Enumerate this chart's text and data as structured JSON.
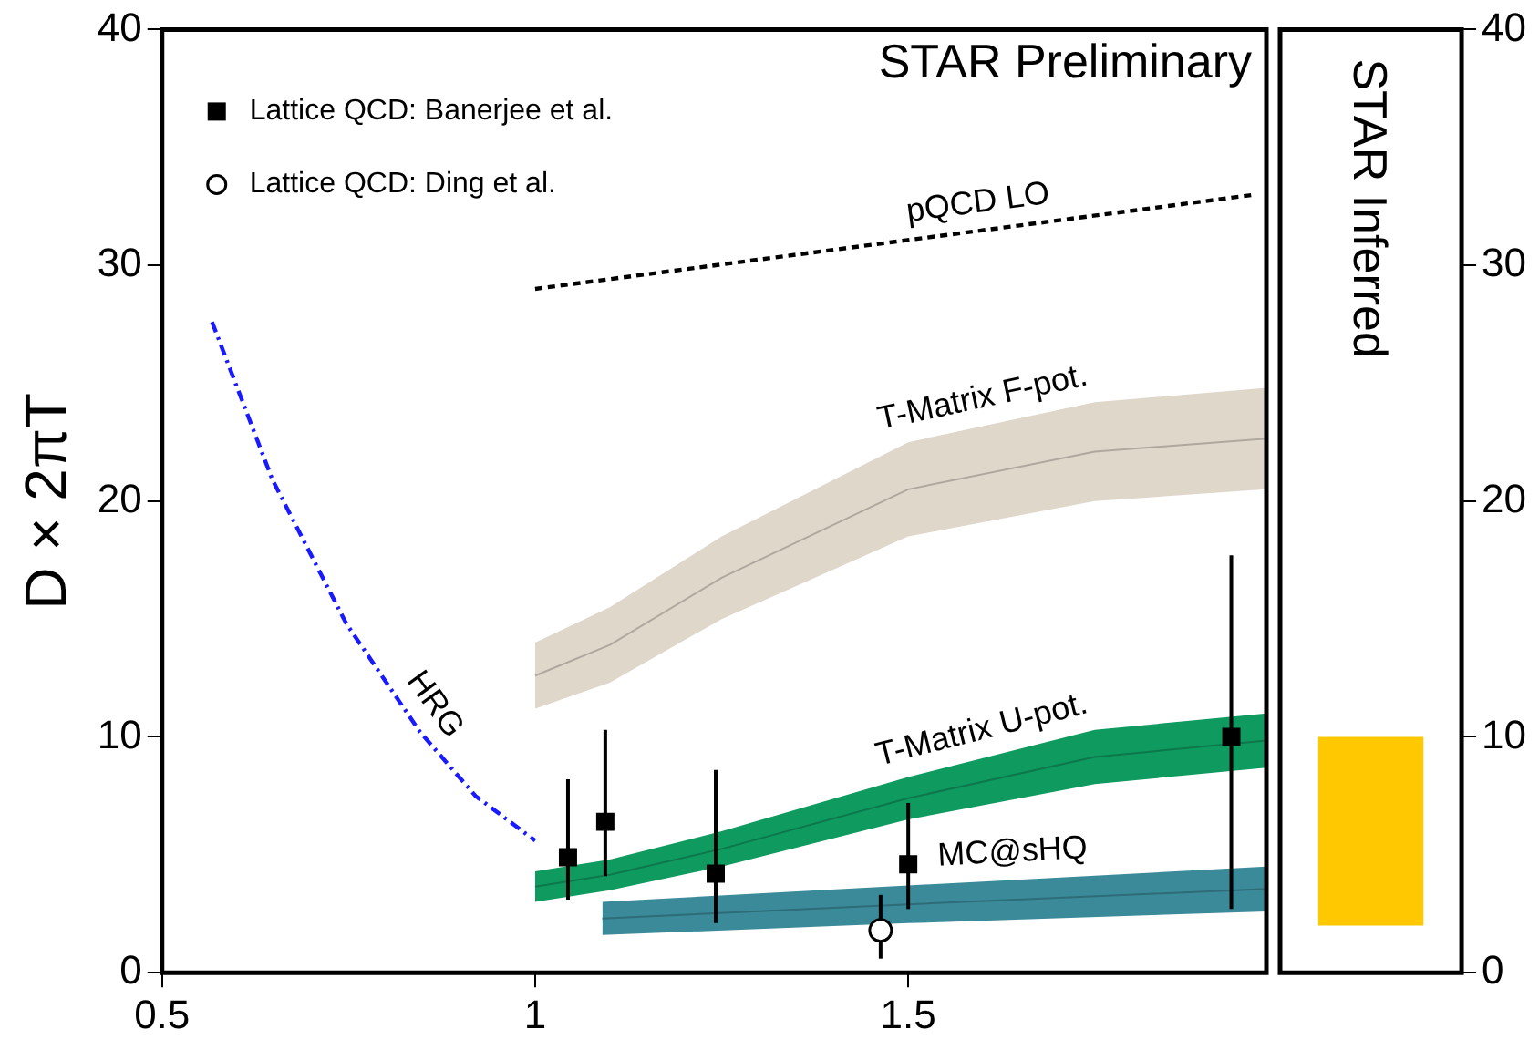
{
  "chart_data": [
    {
      "type": "line",
      "ylabel": "D × 2πT",
      "xlim": [
        0.5,
        1.98
      ],
      "xticks": [
        0.5,
        1,
        1.5
      ],
      "ylim": [
        0,
        40
      ],
      "yticks": [
        0,
        10,
        20,
        30,
        40
      ],
      "grid": false,
      "legend": "top left",
      "annotations": [
        "STAR Preliminary"
      ],
      "tick_labels": "xy",
      "series": [
        {
          "name": "pQCD LO",
          "type": "line",
          "line_style": "dashed",
          "color": "#000000",
          "x": [
            1,
            1.965
          ],
          "values": [
            29,
            33
          ]
        },
        {
          "name": "HRG",
          "type": "line",
          "line_style": "dotted",
          "color": "#1a1aff",
          "x": [
            0.567,
            0.648,
            0.747,
            0.846,
            0.92,
            1.0
          ],
          "values": [
            27.6,
            20.9,
            14.8,
            10.2,
            7.5,
            5.6
          ]
        },
        {
          "name": "T-Matrix F-pot.",
          "type": "line",
          "color": "#afa89e",
          "x": [
            1,
            1.1,
            1.25,
            1.5,
            1.75,
            1.98
          ],
          "values": [
            12.6,
            13.9,
            16.75,
            20.5,
            22.1,
            22.65
          ],
          "lower": [
            11.2,
            12.3,
            15,
            18.5,
            20,
            20.5
          ],
          "upper": [
            14,
            15.5,
            18.5,
            22.5,
            24.2,
            24.8
          ]
        },
        {
          "name": "T-Matrix U-pot.",
          "type": "line",
          "color": "#0c784b",
          "x": [
            1,
            1.1,
            1.25,
            1.5,
            1.75,
            1.98
          ],
          "values": [
            3.65,
            4.15,
            5.25,
            7.4,
            9.15,
            9.85
          ],
          "lower": [
            3,
            3.5,
            4.5,
            6.5,
            8,
            8.7
          ],
          "upper": [
            4.3,
            4.8,
            6,
            8.3,
            10.3,
            11
          ]
        },
        {
          "name": "MC@sHQ",
          "type": "line",
          "color": "#2e6c78",
          "x": [
            1.09,
            1.5,
            1.98
          ],
          "values": [
            2.3,
            2.9,
            3.55
          ],
          "lower": [
            1.6,
            2.1,
            2.6
          ],
          "upper": [
            3,
            3.7,
            4.5
          ]
        },
        {
          "name": "Lattice QCD: Banerjee et al.",
          "type": "scatter",
          "marker": "square",
          "color": "#000000",
          "x": [
            1.044,
            1.094,
            1.242,
            1.5,
            1.933
          ],
          "values": [
            4.9,
            6.4,
            4.2,
            4.6,
            10
          ],
          "errors": [
            [
              3.1,
              8.2
            ],
            [
              4.1,
              10.3
            ],
            [
              2.1,
              8.6
            ],
            [
              2.7,
              7.2
            ],
            [
              2.7,
              17.7
            ]
          ]
        },
        {
          "name": "Lattice QCD: Ding et al.",
          "type": "scatter",
          "marker": "circle",
          "color": "#000000",
          "x": [
            1.463
          ],
          "values": [
            1.8
          ],
          "errors": [
            [
              0.6,
              3.3
            ]
          ]
        }
      ]
    },
    {
      "type": "bar",
      "title": "STAR Inferred",
      "categories": [
        null
      ],
      "base": [
        2
      ],
      "values": [
        8
      ],
      "color": "#ffc800",
      "ylim": [
        0,
        40
      ],
      "yticks": [
        0,
        10,
        20,
        30,
        40
      ],
      "tick_labels": "y"
    }
  ]
}
